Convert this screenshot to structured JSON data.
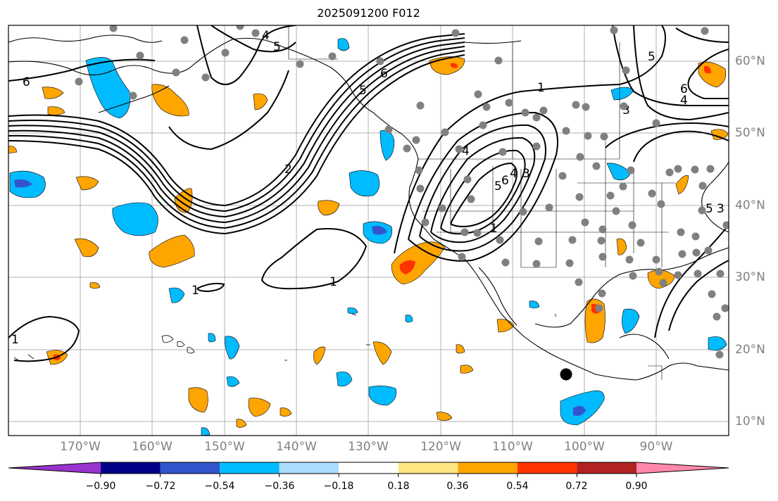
{
  "title": "2025091200 F012",
  "lon_labels": [
    "170°W",
    "160°W",
    "150°W",
    "140°W",
    "130°W",
    "120°W",
    "110°W",
    "100°W",
    "90°W"
  ],
  "lat_labels": [
    "60°N",
    "50°N",
    "40°N",
    "30°N",
    "20°N",
    "10°N"
  ],
  "contour_labels": [
    "6",
    "5",
    "4",
    "6",
    "5",
    "1",
    "6",
    "5",
    "3",
    "4",
    "1",
    "1",
    "1",
    "4",
    "3",
    "1",
    "5",
    "2",
    "3",
    "4",
    "5",
    "6"
  ],
  "colorbar": {
    "ticks": [
      "−0.90",
      "−0.72",
      "−0.54",
      "−0.36",
      "−0.18",
      "0.18",
      "0.36",
      "0.54",
      "0.72",
      "0.90"
    ],
    "colors": [
      "#9933cc",
      "#000088",
      "#3355cc",
      "#00bbff",
      "#aaddff",
      "#ffffff",
      "#ffe680",
      "#ffa500",
      "#ff3300",
      "#b22222",
      "#ff88aa"
    ]
  },
  "colors": {
    "grid": "#9e9e9e",
    "station_dot": "#808080",
    "positive_fill": "#ffa500",
    "negative_fill": "#00bbff"
  }
}
